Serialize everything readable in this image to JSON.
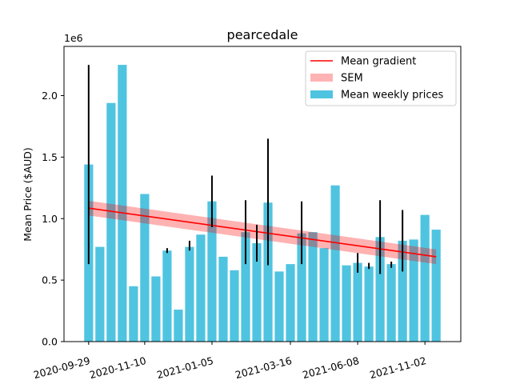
{
  "chart_data": {
    "type": "bar",
    "title": "pearcedale",
    "xlabel": "",
    "ylabel": "Mean Price ($AUD)",
    "y_offset_label": "1e6",
    "ylim": [
      0,
      2400000
    ],
    "yticks": [
      0,
      500000,
      1000000,
      1500000,
      2000000
    ],
    "ytick_labels": [
      "0.0",
      "0.5",
      "1.0",
      "1.5",
      "2.0"
    ],
    "xticks": [
      {
        "index": 0,
        "label": "2020-09-29"
      },
      {
        "index": 5,
        "label": "2020-11-10"
      },
      {
        "index": 11,
        "label": "2021-01-05"
      },
      {
        "index": 18,
        "label": "2021-03-16"
      },
      {
        "index": 24,
        "label": "2021-06-08"
      },
      {
        "index": 30,
        "label": "2021-11-02"
      }
    ],
    "xlim": [
      -2.2,
      33.2
    ],
    "grid": false,
    "legend_position": "top-right",
    "legend": [
      {
        "label": "Mean gradient",
        "kind": "line",
        "color": "#ff0000"
      },
      {
        "label": "SEM",
        "kind": "band",
        "color": "#ffb3b3"
      },
      {
        "label": "Mean weekly prices",
        "kind": "bar",
        "color": "#4fc4e0"
      }
    ],
    "bar_color": "#4fc4e0",
    "values": [
      1440000,
      770000,
      1940000,
      2250000,
      450000,
      1200000,
      530000,
      740000,
      260000,
      770000,
      870000,
      1140000,
      690000,
      580000,
      890000,
      800000,
      1130000,
      570000,
      630000,
      880000,
      890000,
      760000,
      1270000,
      620000,
      640000,
      610000,
      850000,
      630000,
      820000,
      830000,
      1030000,
      910000
    ],
    "error_bars": [
      {
        "index": 0,
        "low": 630000,
        "high": 2250000
      },
      {
        "index": 7,
        "low": 720000,
        "high": 760000
      },
      {
        "index": 9,
        "low": 740000,
        "high": 820000
      },
      {
        "index": 11,
        "low": 930000,
        "high": 1350000
      },
      {
        "index": 14,
        "low": 630000,
        "high": 1150000
      },
      {
        "index": 15,
        "low": 650000,
        "high": 950000
      },
      {
        "index": 16,
        "low": 620000,
        "high": 1650000
      },
      {
        "index": 19,
        "low": 630000,
        "high": 1140000
      },
      {
        "index": 24,
        "low": 560000,
        "high": 720000
      },
      {
        "index": 25,
        "low": 590000,
        "high": 640000
      },
      {
        "index": 26,
        "low": 550000,
        "high": 1150000
      },
      {
        "index": 27,
        "low": 600000,
        "high": 650000
      },
      {
        "index": 28,
        "low": 570000,
        "high": 1070000
      }
    ],
    "gradient": {
      "start_index": 0,
      "end_index": 31,
      "start_value": 1085000,
      "end_value": 690000
    },
    "sem_halfwidth": 60000,
    "gradient_color": "#ff0000",
    "sem_color": "#ff0000"
  }
}
